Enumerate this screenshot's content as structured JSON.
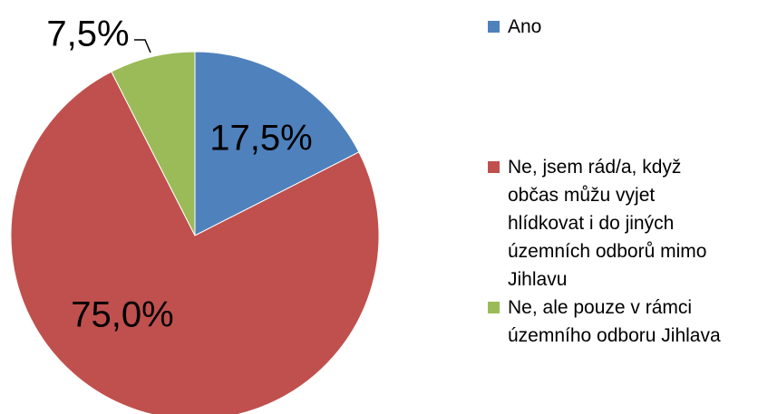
{
  "chart_data": {
    "type": "pie",
    "categories": [
      "Ano",
      "Ne, jsem rád/a, když občas můžu vyjet hlídkovat i do jiných územních odborů mimo Jihlavu",
      "Ne, ale pouze v rámci územního odboru Jihlava"
    ],
    "values": [
      17.5,
      75.0,
      7.5
    ],
    "value_labels": [
      "17,5%",
      "75,0%",
      "7,5%"
    ],
    "colors": [
      "#4f81bd",
      "#c0504d",
      "#9bbb59"
    ]
  }
}
